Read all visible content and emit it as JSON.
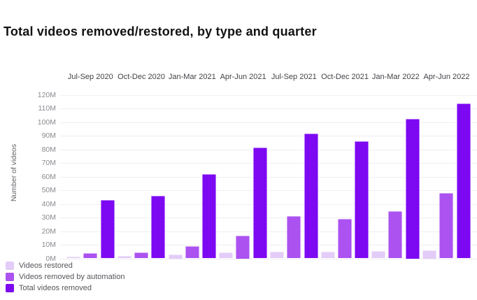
{
  "title": "Total videos removed/restored, by type and quarter",
  "y_axis": {
    "title": "Number of videos",
    "ticks": [
      "0M",
      "10M",
      "20M",
      "30M",
      "40M",
      "50M",
      "60M",
      "70M",
      "80M",
      "90M",
      "100M",
      "110M",
      "120M"
    ]
  },
  "chart_data": {
    "type": "bar",
    "title": "Total videos removed/restored, by type and quarter",
    "categories": [
      "Jul-Sep 2020",
      "Oct-Dec 2020",
      "Jan-Mar 2021",
      "Apr-Jun 2021",
      "Jul-Sep 2021",
      "Oct-Dec 2021",
      "Jan-Mar 2022",
      "Apr-Jun 2022"
    ],
    "series": [
      {
        "name": "Videos restored",
        "color": "#e3ccf7",
        "values": [
          1.5,
          2.0,
          2.8,
          4.4,
          4.7,
          5.1,
          5.3,
          5.9
        ]
      },
      {
        "name": "Videos removed by automation",
        "color": "#ab52f1",
        "values": [
          3.8,
          4.4,
          8.9,
          16.9,
          31.1,
          28.8,
          34.7,
          48.0
        ]
      },
      {
        "name": "Total videos removed",
        "color": "#7d08f2",
        "values": [
          43.0,
          46.1,
          61.9,
          81.5,
          91.4,
          85.8,
          102.3,
          113.8
        ]
      }
    ],
    "unit": "millions (M)",
    "ylabel": "Number of videos",
    "ylim": [
      0,
      120
    ],
    "ytick_step": 10,
    "grid": true,
    "category_labels_position": "top",
    "legend_position": "bottom-left",
    "colors": {
      "background": "#ffffff",
      "gridline": "#efeef2",
      "title_text": "#121212",
      "x_label_text": "#424347",
      "y_tick_text": "#8a8b90",
      "legend_text": "#55565b"
    }
  }
}
